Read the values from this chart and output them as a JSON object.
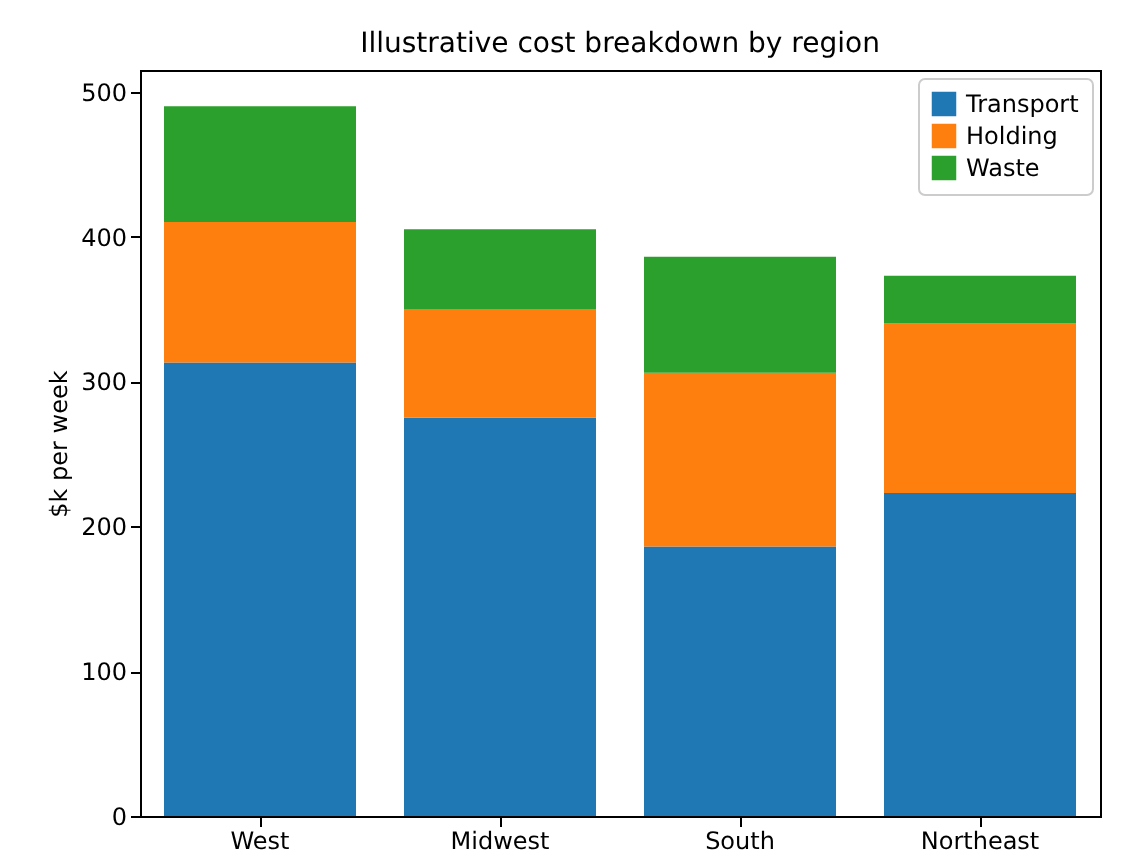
{
  "chart_data": {
    "type": "bar",
    "title": "Illustrative cost breakdown by region",
    "ylabel": "$k per week",
    "categories": [
      "West",
      "Midwest",
      "South",
      "Northeast"
    ],
    "stacked": true,
    "series": [
      {
        "name": "Transport",
        "color": "#1f77b4",
        "values": [
          313,
          275,
          186,
          223
        ]
      },
      {
        "name": "Holding",
        "color": "#ff7f0e",
        "values": [
          97,
          75,
          120,
          117
        ]
      },
      {
        "name": "Waste",
        "color": "#2ca02c",
        "values": [
          80,
          55,
          80,
          33
        ]
      }
    ],
    "ylim": [
      0,
      515
    ],
    "yticks": [
      0,
      100,
      200,
      300,
      400,
      500
    ],
    "grid": false,
    "legend": "top right"
  }
}
